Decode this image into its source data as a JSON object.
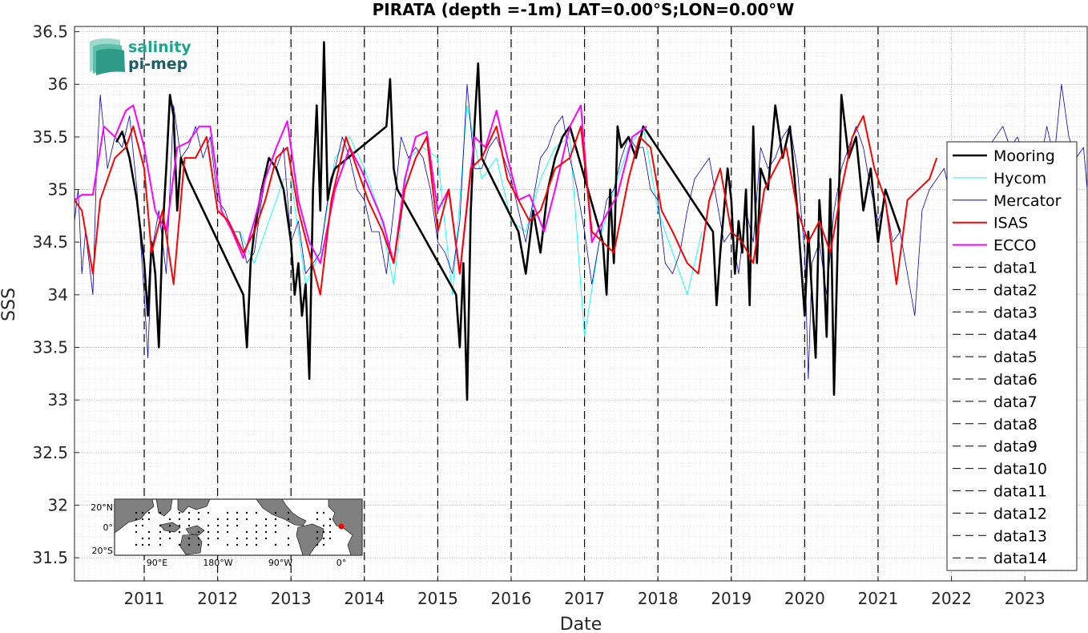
{
  "chart_data": {
    "type": "line",
    "title": "PIRATA (depth =-1m) LAT=0.00°S;LON=0.00°W",
    "xlabel": "Date",
    "ylabel": "SSS",
    "xlim": [
      2010.05,
      2023.85
    ],
    "ylim": [
      31.28,
      36.55
    ],
    "yticks": [
      31.5,
      32,
      32.5,
      33,
      33.5,
      34,
      34.5,
      35,
      35.5,
      36,
      36.5
    ],
    "ytick_labels": [
      "31.5",
      "32",
      "32.5",
      "33",
      "33.5",
      "34",
      "34.5",
      "35",
      "35.5",
      "36",
      "36.5"
    ],
    "xticks": [
      2011,
      2012,
      2013,
      2014,
      2015,
      2016,
      2017,
      2018,
      2019,
      2020,
      2021,
      2022,
      2023
    ],
    "xtick_labels": [
      "2011",
      "2012",
      "2013",
      "2014",
      "2015",
      "2016",
      "2017",
      "2018",
      "2019",
      "2020",
      "2021",
      "2022",
      "2023"
    ],
    "grid": "minor dotted",
    "legend_position": "right",
    "vertical_dashed_lines": [
      2011,
      2012,
      2013,
      2014,
      2015,
      2016,
      2017,
      2018,
      2019,
      2020,
      2021
    ],
    "series": [
      {
        "name": "Mooring",
        "color": "#000000",
        "style": "solid-dots",
        "x": [
          2010.62,
          2010.7,
          2010.8,
          2010.9,
          2011.0,
          2011.05,
          2011.1,
          2011.15,
          2011.2,
          2011.25,
          2011.3,
          2011.35,
          2011.4,
          2011.45,
          2011.5,
          2011.6,
          2012.35,
          2012.4,
          2012.45,
          2012.5,
          2012.6,
          2012.7,
          2012.8,
          2012.9,
          2013.0,
          2013.05,
          2013.1,
          2013.15,
          2013.2,
          2013.25,
          2013.3,
          2013.35,
          2013.4,
          2013.45,
          2013.5,
          2013.55,
          2013.6,
          2014.3,
          2014.35,
          2014.4,
          2014.45,
          2015.25,
          2015.3,
          2015.35,
          2015.4,
          2015.45,
          2015.5,
          2015.55,
          2015.6,
          2016.1,
          2016.2,
          2016.3,
          2016.4,
          2016.5,
          2016.6,
          2016.7,
          2016.8,
          2017.25,
          2017.3,
          2017.35,
          2017.4,
          2017.45,
          2017.5,
          2017.6,
          2017.7,
          2017.8,
          2018.75,
          2018.8,
          2018.85,
          2018.9,
          2018.95,
          2019.0,
          2019.05,
          2019.1,
          2019.15,
          2019.2,
          2019.25,
          2019.3,
          2019.35,
          2019.4,
          2019.5,
          2019.6,
          2019.7,
          2019.8,
          2019.9,
          2019.95,
          2020.0,
          2020.05,
          2020.1,
          2020.15,
          2020.2,
          2020.25,
          2020.3,
          2020.35,
          2020.4,
          2020.5,
          2020.6,
          2020.7,
          2020.8,
          2020.9,
          2021.0,
          2021.1,
          2021.2,
          2021.3
        ],
        "y": [
          35.45,
          35.55,
          35.3,
          34.9,
          34.3,
          33.8,
          34.5,
          34.2,
          33.5,
          34.6,
          35.2,
          35.9,
          35.7,
          34.8,
          35.3,
          35.1,
          34.0,
          33.5,
          34.3,
          34.6,
          35.0,
          35.3,
          35.2,
          35.0,
          34.5,
          34.0,
          34.3,
          33.8,
          34.1,
          33.2,
          35.0,
          35.8,
          34.8,
          36.4,
          34.9,
          35.1,
          35.2,
          35.6,
          36.05,
          35.2,
          35.0,
          34.0,
          33.5,
          34.3,
          33.0,
          34.8,
          35.6,
          36.2,
          35.3,
          34.6,
          34.2,
          34.8,
          34.4,
          35.0,
          35.3,
          35.5,
          35.6,
          34.5,
          34.0,
          35.0,
          34.3,
          35.6,
          35.4,
          35.5,
          35.3,
          35.6,
          34.6,
          33.9,
          34.4,
          34.8,
          35.2,
          34.9,
          34.2,
          34.7,
          34.4,
          35.0,
          33.9,
          35.6,
          34.3,
          35.2,
          35.0,
          35.8,
          35.3,
          35.6,
          34.8,
          34.3,
          33.8,
          34.6,
          34.0,
          33.4,
          34.9,
          34.4,
          33.6,
          35.1,
          33.05,
          35.9,
          35.3,
          35.5,
          34.8,
          35.2,
          34.5,
          35.0,
          34.8,
          34.6
        ],
        "visible_range": [
          31.3,
          36.5
        ]
      },
      {
        "name": "Hycom",
        "color": "#00ffff",
        "style": "solid",
        "x": [
          2012.3,
          2012.5,
          2012.7,
          2012.9,
          2013.0,
          2013.2,
          2013.4,
          2013.6,
          2013.8,
          2014.0,
          2014.2,
          2014.4,
          2014.6,
          2014.8,
          2015.0,
          2015.2,
          2015.4,
          2015.6,
          2015.8,
          2016.0,
          2016.2,
          2016.4,
          2016.6,
          2016.8,
          2017.0,
          2017.2,
          2017.4,
          2017.6,
          2017.8,
          2018.0,
          2018.2,
          2018.4,
          2018.6
        ],
        "y": [
          34.6,
          34.3,
          34.7,
          35.1,
          35.1,
          34.1,
          34.4,
          35.3,
          35.5,
          35.2,
          34.8,
          34.1,
          35.3,
          35.4,
          35.3,
          34.0,
          35.8,
          35.1,
          35.3,
          34.7,
          34.6,
          35.1,
          35.4,
          35.5,
          33.6,
          34.5,
          35.0,
          35.4,
          35.6,
          34.8,
          34.4,
          34.0,
          34.6
        ]
      },
      {
        "name": "Mercator",
        "color": "#0000cd",
        "style": "solid",
        "x": [
          2010.05,
          2010.1,
          2010.15,
          2010.2,
          2010.3,
          2010.35,
          2010.4,
          2010.5,
          2010.6,
          2010.7,
          2010.8,
          2010.9,
          2011.0,
          2011.05,
          2011.1,
          2011.2,
          2011.3,
          2011.4,
          2011.5,
          2011.6,
          2011.7,
          2011.8,
          2011.9,
          2012.0,
          2012.1,
          2012.2,
          2012.3,
          2012.4,
          2012.5,
          2012.6,
          2012.7,
          2012.8,
          2012.9,
          2013.0,
          2013.1,
          2013.2,
          2013.3,
          2013.4,
          2013.5,
          2013.6,
          2013.7,
          2013.8,
          2013.9,
          2014.0,
          2014.1,
          2014.2,
          2014.3,
          2014.4,
          2014.5,
          2014.6,
          2014.7,
          2014.8,
          2014.9,
          2015.0,
          2015.1,
          2015.2,
          2015.3,
          2015.4,
          2015.5,
          2015.6,
          2015.7,
          2015.8,
          2015.9,
          2016.0,
          2016.1,
          2016.2,
          2016.3,
          2016.4,
          2016.5,
          2016.6,
          2016.7,
          2016.8,
          2016.9,
          2017.0,
          2017.1,
          2017.2,
          2017.3,
          2017.4,
          2017.5,
          2017.6,
          2017.7,
          2017.8,
          2017.9,
          2018.0,
          2018.1,
          2018.2,
          2018.3,
          2018.4,
          2018.5,
          2018.6,
          2018.7,
          2018.8,
          2018.9,
          2019.0,
          2019.1,
          2019.2,
          2019.3,
          2019.4,
          2019.5,
          2019.6,
          2019.7,
          2019.8,
          2019.9,
          2020.0,
          2020.05,
          2020.1,
          2020.2,
          2020.3,
          2020.4,
          2020.5,
          2020.6,
          2020.7,
          2020.8,
          2020.9,
          2021.0,
          2021.1,
          2021.2,
          2021.3,
          2021.4,
          2021.5,
          2021.6,
          2021.7,
          2021.8,
          2021.9,
          2022.0,
          2022.1,
          2022.2,
          2022.3,
          2022.4,
          2022.5,
          2022.6,
          2022.7,
          2022.8,
          2022.9,
          2023.0,
          2023.1,
          2023.2,
          2023.3,
          2023.4,
          2023.5,
          2023.6,
          2023.7,
          2023.8,
          2023.85
        ],
        "y": [
          34.7,
          35.0,
          34.2,
          34.6,
          34.0,
          35.2,
          35.9,
          35.2,
          35.5,
          35.4,
          35.7,
          35.0,
          34.0,
          33.4,
          34.4,
          34.8,
          34.2,
          35.8,
          35.3,
          35.4,
          35.6,
          35.3,
          35.5,
          34.9,
          34.8,
          34.6,
          34.6,
          34.3,
          34.4,
          34.9,
          35.3,
          35.2,
          35.4,
          34.5,
          34.7,
          34.2,
          34.3,
          34.4,
          34.9,
          35.2,
          35.5,
          35.3,
          35.0,
          34.9,
          34.6,
          34.6,
          34.2,
          34.8,
          35.5,
          35.3,
          35.4,
          35.3,
          35.0,
          34.5,
          34.4,
          34.2,
          34.7,
          36.0,
          35.2,
          35.2,
          35.4,
          35.5,
          35.3,
          35.1,
          34.8,
          34.5,
          34.9,
          35.3,
          35.4,
          35.6,
          35.7,
          35.3,
          35.0,
          34.6,
          34.1,
          34.5,
          34.9,
          35.0,
          35.3,
          35.5,
          35.4,
          35.4,
          35.0,
          34.9,
          34.3,
          34.2,
          34.4,
          34.8,
          35.1,
          35.2,
          35.3,
          34.9,
          34.5,
          34.6,
          34.2,
          34.8,
          34.5,
          35.4,
          35.2,
          35.3,
          35.5,
          35.6,
          35.2,
          34.4,
          33.2,
          34.3,
          34.5,
          34.0,
          34.8,
          35.2,
          35.4,
          35.6,
          35.4,
          35.0,
          34.7,
          34.9,
          34.5,
          34.6,
          34.2,
          33.8,
          34.8,
          35.0,
          35.1,
          35.2,
          34.9,
          35.0,
          35.1,
          35.2,
          35.3,
          35.4,
          35.5,
          35.6,
          35.4,
          35.5,
          35.3,
          35.1,
          35.2,
          35.6,
          35.3,
          36.0,
          35.5,
          35.3,
          35.4,
          35.0
        ]
      },
      {
        "name": "ISAS",
        "color": "#ff0000",
        "style": "solid",
        "x": [
          2010.05,
          2010.15,
          2010.3,
          2010.4,
          2010.6,
          2010.75,
          2010.85,
          2011.0,
          2011.1,
          2011.25,
          2011.4,
          2011.55,
          2011.7,
          2011.85,
          2012.0,
          2012.15,
          2012.35,
          2012.5,
          2012.65,
          2012.8,
          2012.95,
          2013.1,
          2013.25,
          2013.4,
          2013.55,
          2013.75,
          2013.9,
          2014.05,
          2014.25,
          2014.4,
          2014.55,
          2014.7,
          2014.85,
          2015.0,
          2015.15,
          2015.3,
          2015.45,
          2015.6,
          2015.8,
          2015.95,
          2016.1,
          2016.25,
          2016.4,
          2016.6,
          2016.8,
          2016.95,
          2017.1,
          2017.25,
          2017.4,
          2017.6,
          2017.75,
          2017.9,
          2018.05,
          2018.2,
          2018.4,
          2018.55,
          2018.7,
          2018.85,
          2019.0,
          2019.15,
          2019.3,
          2019.45,
          2019.6,
          2019.75,
          2019.9,
          2020.05,
          2020.2,
          2020.35,
          2020.5,
          2020.65,
          2020.8,
          2020.95,
          2021.1,
          2021.25,
          2021.4,
          2021.55,
          2021.7,
          2021.8
        ],
        "y": [
          34.9,
          34.8,
          34.2,
          34.9,
          35.3,
          35.4,
          35.6,
          35.2,
          34.4,
          34.8,
          34.1,
          35.3,
          35.3,
          35.5,
          34.8,
          34.7,
          34.4,
          34.6,
          34.9,
          35.3,
          35.4,
          34.8,
          34.4,
          34.0,
          34.9,
          35.5,
          35.2,
          34.9,
          34.6,
          34.3,
          35.0,
          35.3,
          35.5,
          34.6,
          35.0,
          34.2,
          35.2,
          35.3,
          35.6,
          35.1,
          34.9,
          34.7,
          34.8,
          35.2,
          35.3,
          35.6,
          34.6,
          34.5,
          34.4,
          35.1,
          35.5,
          35.4,
          34.8,
          34.6,
          34.3,
          34.2,
          34.9,
          35.2,
          34.6,
          34.5,
          34.3,
          35.0,
          35.2,
          35.4,
          34.8,
          34.5,
          34.7,
          34.4,
          35.0,
          35.5,
          35.7,
          35.2,
          34.9,
          34.1,
          34.9,
          35.0,
          35.1,
          35.3
        ]
      },
      {
        "name": "ECCO",
        "color": "#ff00ff",
        "style": "solid",
        "x": [
          2010.05,
          2010.15,
          2010.3,
          2010.45,
          2010.6,
          2010.75,
          2010.85,
          2011.0,
          2011.15,
          2011.3,
          2011.45,
          2011.6,
          2011.75,
          2011.9,
          2012.05,
          2012.2,
          2012.35,
          2012.5,
          2012.65,
          2012.8,
          2012.95,
          2013.1,
          2013.25,
          2013.4,
          2013.6,
          2013.8,
          2013.95,
          2014.1,
          2014.25,
          2014.4,
          2014.55,
          2014.7,
          2014.85,
          2015.0,
          2015.15,
          2015.3,
          2015.5,
          2015.65,
          2015.8,
          2015.95,
          2016.1,
          2016.25,
          2016.45,
          2016.6,
          2016.8,
          2016.95,
          2017.1,
          2017.25,
          2017.45,
          2017.65,
          2017.85
        ],
        "y": [
          34.9,
          34.95,
          34.95,
          35.6,
          35.5,
          35.75,
          35.8,
          35.4,
          34.8,
          34.6,
          35.4,
          35.45,
          35.6,
          35.6,
          34.8,
          34.6,
          34.35,
          34.7,
          35.1,
          35.4,
          35.65,
          34.9,
          34.5,
          34.3,
          35.0,
          35.4,
          35.2,
          34.95,
          34.7,
          34.3,
          35.1,
          35.5,
          35.55,
          34.8,
          35.0,
          34.2,
          35.5,
          35.4,
          35.75,
          35.3,
          34.9,
          34.95,
          34.6,
          35.0,
          35.6,
          35.8,
          34.5,
          34.7,
          34.95,
          35.5,
          35.6
        ]
      }
    ],
    "legend_entries": [
      "Mooring",
      "Hycom",
      "Mercator",
      "ISAS",
      "ECCO",
      "data1",
      "data2",
      "data3",
      "data4",
      "data5",
      "data6",
      "data7",
      "data8",
      "data9",
      "data10",
      "data11",
      "data12",
      "data13",
      "data14"
    ],
    "colors": {
      "Mooring": "#000000",
      "Hycom": "#00ffff",
      "Mercator": "#0000cd",
      "ISAS": "#ff0000",
      "ECCO": "#ff00ff",
      "dataLines": "#000000"
    }
  },
  "logo": {
    "line1": "salinity",
    "line2": "pi-mep",
    "color1": "#1aa58f",
    "color2": "#1b5e6b"
  },
  "inset_map": {
    "lat_labels": [
      "20°N",
      "0°",
      "20°S"
    ],
    "lon_labels": [
      "90°E",
      "180°W",
      "90°W",
      "0°"
    ],
    "marker_color": "#ff0000"
  }
}
